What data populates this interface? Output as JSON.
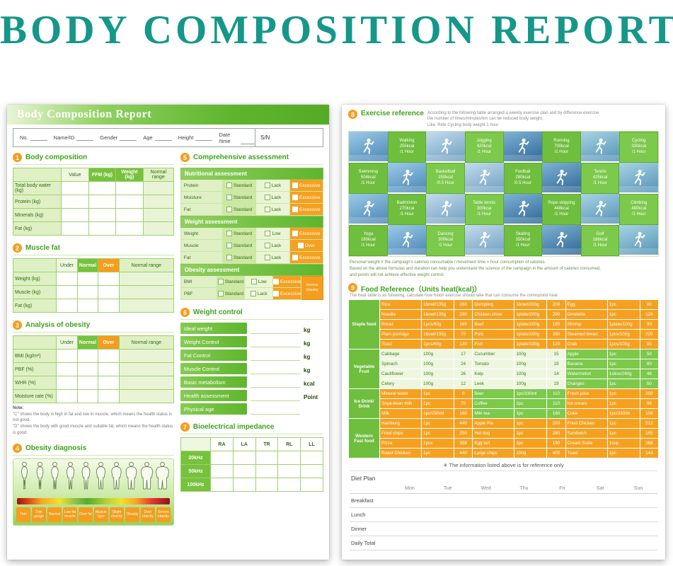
{
  "page_title": "BODY COMPOSITION REPORT",
  "left_page": {
    "header_title": "Body Composition Report",
    "info_fields": [
      "No.",
      "Name/ID",
      "Gender",
      "Age",
      "Height",
      "Date /time"
    ],
    "sn_label": "S/N",
    "section1": {
      "number": "1",
      "title": "Body composition",
      "columns": [
        "Value",
        "FFM (kg)",
        "Weight (kg)",
        "Normal range"
      ],
      "rows": [
        "Total body water (kg)",
        "Protein (kg)",
        "Minerals (kg)",
        "Fat (kg)"
      ]
    },
    "section2": {
      "number": "2",
      "title": "Muscle fat",
      "columns": [
        "Under",
        "Normal",
        "Over",
        "Normal range"
      ],
      "rows": [
        "Weight (kg)",
        "Muscle (kg)",
        "Fat (kg)"
      ]
    },
    "section3": {
      "number": "3",
      "title": "Analysis of obesity",
      "columns": [
        "Under",
        "Normal",
        "Over",
        "Normal range"
      ],
      "rows": [
        "BMI (kg/m²)",
        "PBF (%)",
        "WHR (%)",
        "Moisture rate (%)"
      ],
      "note_title": "Note:",
      "notes": [
        "\"C\" shows the body is high in fat and low in muscle, which means the health status is not good.",
        "\"D\" shows the body with good muscle and suitable fat, which means the health status is good."
      ]
    },
    "section4": {
      "number": "4",
      "title": "Obesity diagnosis",
      "labels": [
        "Thin",
        "Thin gauge",
        "Normal",
        "Low fat muscle",
        "Over fat",
        "Muscle type",
        "Slight obesity",
        "Obesity",
        "Over obesity",
        "Severe obesity"
      ]
    },
    "section5": {
      "number": "5",
      "title": "Comprehensive assessment",
      "groups": [
        {
          "heading": "Nutritional assessment",
          "rows": [
            {
              "label": "Protein",
              "options": [
                "Standard",
                "Lack",
                "Excessive"
              ]
            },
            {
              "label": "Moisture",
              "options": [
                "Standard",
                "Lack",
                "Excessive"
              ]
            },
            {
              "label": "Fat",
              "options": [
                "Standard",
                "Lack",
                "Excessive"
              ]
            }
          ]
        },
        {
          "heading": "Weight assessment",
          "rows": [
            {
              "label": "Weight",
              "options": [
                "Standard",
                "Low",
                "Excessive"
              ]
            },
            {
              "label": "Muscle",
              "options": [
                "Standard",
                "Lack",
                "Over"
              ]
            },
            {
              "label": "Fat",
              "options": [
                "Standard",
                "Lack",
                "Excessive"
              ]
            }
          ]
        },
        {
          "heading": "Obesity assessment",
          "side_label": "Severe obesity",
          "rows": [
            {
              "label": "BMI",
              "options": [
                "Standard",
                "Low",
                "Excessive"
              ]
            },
            {
              "label": "PBF",
              "options": [
                "Standard",
                "Lack",
                "Excessive"
              ]
            }
          ]
        }
      ]
    },
    "section6": {
      "number": "6",
      "title": "Weight control",
      "rows": [
        {
          "label": "Ideal weight",
          "unit": "kg"
        },
        {
          "label": "Weight Control",
          "unit": "kg"
        },
        {
          "label": "Fat Control",
          "unit": "kg"
        },
        {
          "label": "Muscle Control",
          "unit": "kg"
        },
        {
          "label": "Basic metabolism",
          "unit": "kcal"
        },
        {
          "label": "Health assessment",
          "unit": "Point"
        },
        {
          "label": "Physical age",
          "unit": ""
        }
      ]
    },
    "section7": {
      "number": "7",
      "title": "Bioelectrical impedance",
      "columns": [
        "RA",
        "LA",
        "TR",
        "RL",
        "LL"
      ],
      "rows": [
        "20kHz",
        "50kHz",
        "100kHz"
      ]
    }
  },
  "right_page": {
    "section8": {
      "number": "8",
      "title": "Exercise reference",
      "intro": [
        "According to the following table arranged a weekly exercise plan and by difference exercise",
        "the number of times/minutes/km can be reduced body weight.",
        "Like: Ride Cycling body weight 1 hour"
      ],
      "exercises": [
        {
          "name": "Walking",
          "kcal": "255kcal",
          "time": "/1 Hour"
        },
        {
          "name": "Jogging",
          "kcal": "420kcal",
          "time": "/1 Hour"
        },
        {
          "name": "Running",
          "kcal": "700kcal",
          "time": "/1 Hour"
        },
        {
          "name": "Cycling",
          "kcal": "330kcal",
          "time": "/1 Hour"
        },
        {
          "name": "Swimming",
          "kcal": "504kcal",
          "time": "/1 Hour"
        },
        {
          "name": "Basketball",
          "kcal": "250kcal",
          "time": "/0.5 Hour"
        },
        {
          "name": "Football",
          "kcal": "280kcal",
          "time": "/0.5 Hour"
        },
        {
          "name": "Tennis",
          "kcal": "425kcal",
          "time": "/1 Hour"
        },
        {
          "name": "Badminton",
          "kcal": "270kcal",
          "time": "/1 Hour"
        },
        {
          "name": "Table tennis",
          "kcal": "300kcal",
          "time": "/1 Hour"
        },
        {
          "name": "Rope skipping",
          "kcal": "448kcal",
          "time": "/1 Hour"
        },
        {
          "name": "Climbing",
          "kcal": "480kcal",
          "time": "/1 Hour"
        },
        {
          "name": "Yoga",
          "kcal": "180kcal",
          "time": "/1 Hour"
        },
        {
          "name": "Dancing",
          "kcal": "300kcal",
          "time": "/1 Hour"
        },
        {
          "name": "Skating",
          "kcal": "350kcal",
          "time": "/1 Hour"
        },
        {
          "name": "Golf",
          "kcal": "186kcal",
          "time": "/1 Hour"
        }
      ],
      "footnotes": [
        "Personal weight × the campaign's calories consumable / movement time = hour consumption of calories.",
        "Based on the above formulas and duration can help you understand the science of the campaign in the amount of calories consumed,",
        "and points will not achieve effective weight control."
      ]
    },
    "section9": {
      "number": "9",
      "title": "Food Reference（Units heat(kcal)）",
      "subtitle": "The heat table is as following, calculate how much exercise should take that can consume the correspond heat",
      "note": "✳ The information listed above is for reference only",
      "groups": [
        {
          "category": "Staple food",
          "tones": [
            "orange",
            "orange",
            "orange"
          ],
          "rows": [
            [
              "Rice",
              "1bowl/135g",
              "260",
              "Dumpling",
              "1bowl/200g",
              "200",
              "Egg",
              "1pc",
              "80"
            ],
            [
              "Noodle",
              "1bowl/135g",
              "280",
              "Chicken chow",
              "1plate/200g",
              "290",
              "Omelette",
              "1pc",
              "126"
            ],
            [
              "Bread",
              "1pcs/60g",
              "160",
              "Beef",
              "1plate/100g",
              "180",
              "Shrimp",
              "1plate/100g",
              "90"
            ],
            [
              "Plain porridge",
              "1bowl/135g",
              "70",
              "Pork",
              "1plate/100g",
              "390",
              "Steamed bread",
              "1pcs/100g",
              "220"
            ],
            [
              "Toast",
              "1pcs/60g",
              "130",
              "Fish",
              "1plate/100g",
              "120",
              "Crab",
              "1pcs/100g",
              "95"
            ]
          ]
        },
        {
          "category": "Vegetable Fruit",
          "tones": [
            "light",
            "light",
            "green"
          ],
          "rows": [
            [
              "Cabbage",
              "100g",
              "17",
              "Cucumber",
              "100g",
              "15",
              "Apple",
              "1pc",
              "50"
            ],
            [
              "Spinach",
              "100g",
              "24",
              "Tomato",
              "100g",
              "19",
              "Banana",
              "1pc",
              "80"
            ],
            [
              "Cauliflower",
              "100g",
              "26",
              "Kelp",
              "100g",
              "14",
              "Watermelon",
              "1slice/240g",
              "48"
            ],
            [
              "Celery",
              "100g",
              "12",
              "Leek",
              "100g",
              "19",
              "Oranges",
              "1pc",
              "50"
            ]
          ]
        },
        {
          "category": "Ice Drink/ Drink",
          "tones": [
            "orange",
            "green",
            "orange"
          ],
          "rows": [
            [
              "Mineral water",
              "1pc",
              "0",
              "Beer",
              "1pc/330ml",
              "110",
              "Fresh juice",
              "1pc",
              "250"
            ],
            [
              "Soya-bean milk",
              "1pc",
              "70",
              "Coffee",
              "1pc",
              "110",
              "Ice cream",
              "1pc",
              "98"
            ],
            [
              "Milk",
              "1pc/250ml",
              "160",
              "Milk tea",
              "1pc",
              "180",
              "Coke",
              "1pc/330ml",
              "108"
            ]
          ]
        },
        {
          "category": "Western Fast food",
          "tones": [
            "orange",
            "orange",
            "orange"
          ],
          "rows": [
            [
              "Hamburg",
              "1pc",
              "440",
              "Apple Pie",
              "1pc",
              "260",
              "Fried Chicken",
              "1pc",
              "512"
            ],
            [
              "Fried chips",
              "1pc",
              "250",
              "Hot dog",
              "1pc",
              "280",
              "Sandwich",
              "1pc",
              "165"
            ],
            [
              "Pizza",
              "1pcs",
              "358",
              "Egg tart",
              "1pc",
              "190",
              "Cream Soda",
              "1cup",
              "268"
            ],
            [
              "Roast Chicken",
              "1pc",
              "440",
              "Large chips",
              "100g",
              "400",
              "Toast",
              "1pc",
              "143"
            ]
          ]
        }
      ]
    },
    "diet_plan": {
      "title": "Diet Plan",
      "days": [
        "Mon",
        "Tue",
        "Wed",
        "Thu",
        "Fri",
        "Sat",
        "Sun"
      ],
      "rows": [
        "Breakfast",
        "Lunch",
        "Dinner",
        "Daily Total"
      ]
    }
  }
}
